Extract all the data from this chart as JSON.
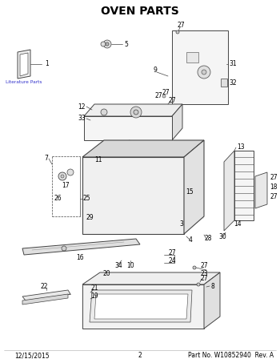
{
  "title": "OVEN PARTS",
  "title_fontsize": 10,
  "title_fontweight": "bold",
  "footer_left": "12/15/2015",
  "footer_center": "2",
  "footer_right": "Part No. W10852940  Rev. A",
  "footer_fontsize": 5.5,
  "bg_color": "#ffffff",
  "line_color": "#444444",
  "label_fontsize": 5.5,
  "link_color": "#3333cc",
  "fig_width": 3.5,
  "fig_height": 4.53,
  "dpi": 100
}
